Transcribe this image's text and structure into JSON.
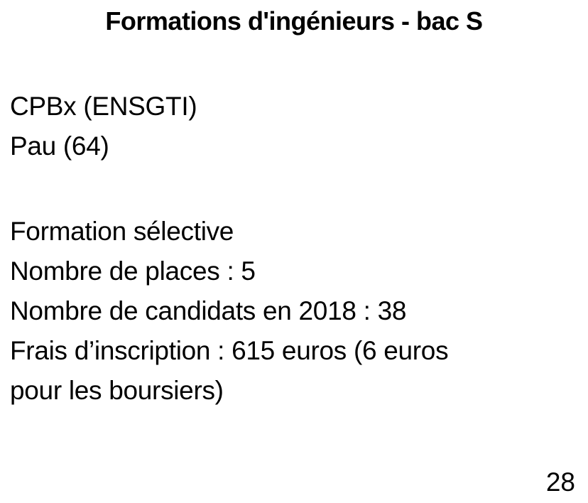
{
  "slide": {
    "title": "Formations d'ingénieurs - bac S",
    "school": {
      "name": "CPBx (ENSGTI)",
      "location": "Pau (64)"
    },
    "details": [
      "Formation sélective",
      "Nombre de places : 5",
      "Nombre de candidats en 2018 : 38",
      "Frais d’inscription : 615 euros (6 euros",
      "pour les boursiers)"
    ],
    "page_number": "28"
  }
}
